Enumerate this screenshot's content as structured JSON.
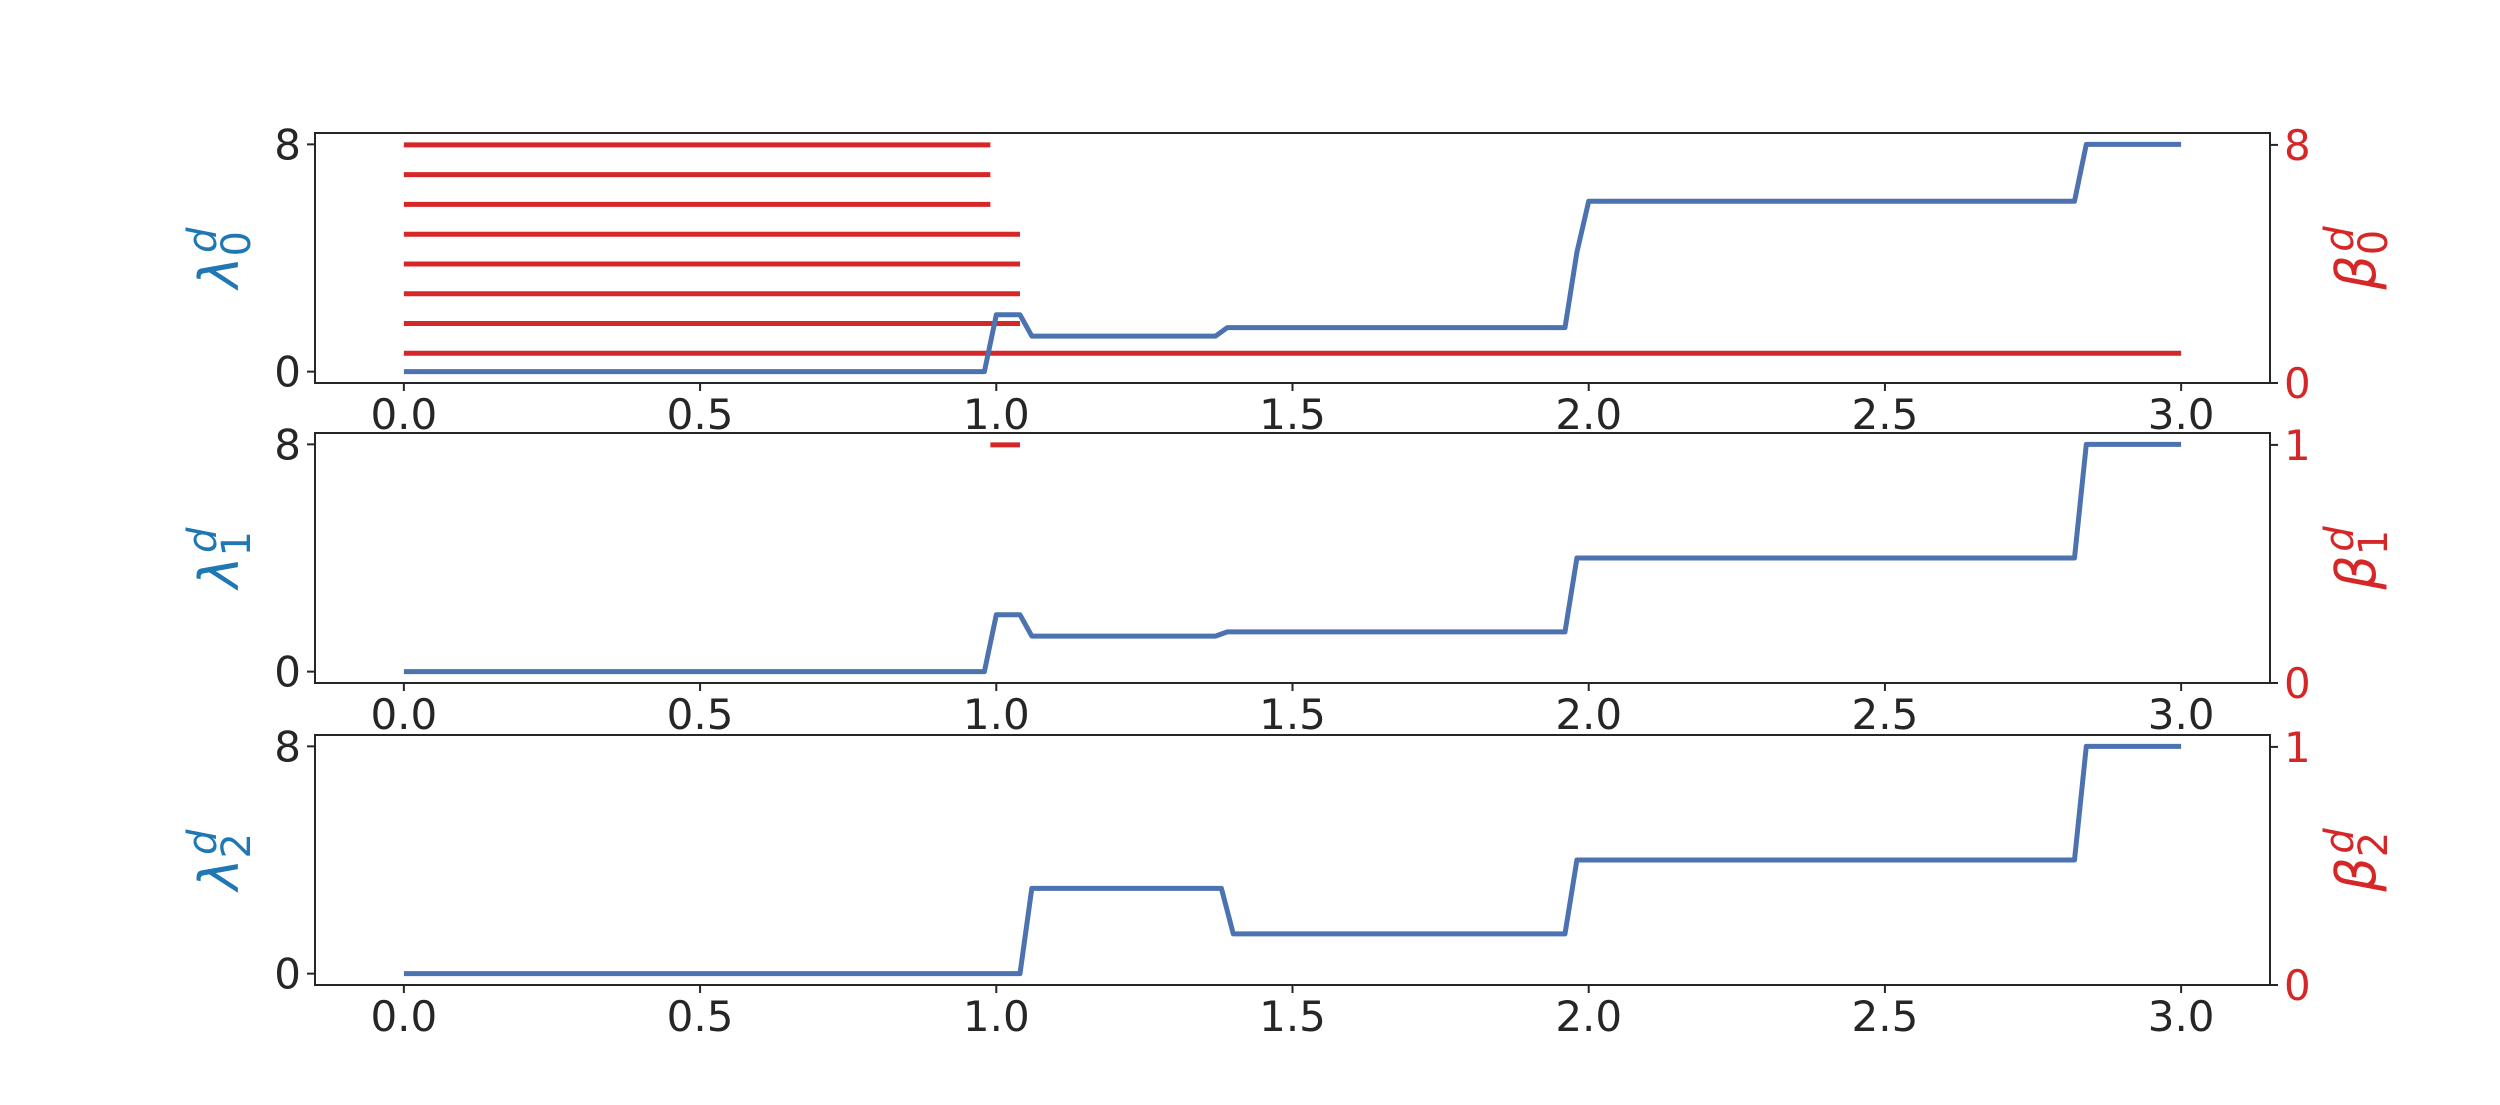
{
  "colors": {
    "left_axis": "#1f77b4",
    "right_axis": "#d62728",
    "line": "#4c72b0",
    "bar": "#d62728",
    "text": "#262626"
  },
  "chart_data": [
    {
      "type": "line",
      "title": "",
      "x_ticks": [
        "0.0",
        "0.5",
        "1.0",
        "1.5",
        "2.0",
        "2.5",
        "3.0"
      ],
      "xlim": [
        -0.15,
        3.15
      ],
      "left_axis": {
        "label_base": "λ",
        "label_sub": "0",
        "label_sup": "d",
        "ticks": [
          "0",
          "8"
        ],
        "ylim": [
          -0.4,
          8.4
        ]
      },
      "right_axis": {
        "label_base": "β",
        "label_sub": "0",
        "label_sup": "d",
        "ticks": [
          "0",
          "8"
        ],
        "ylim": [
          0,
          8.4
        ]
      },
      "series": [
        {
          "x": [
            0.0,
            0.98,
            1.0,
            1.04,
            1.06,
            1.37,
            1.39,
            1.96,
            1.98,
            2.0,
            2.82,
            2.84,
            3.0
          ],
          "y": [
            0.0,
            0.0,
            2.0,
            2.0,
            1.25,
            1.25,
            1.55,
            1.55,
            4.2,
            6.0,
            6.0,
            8.0,
            8.0
          ]
        }
      ],
      "persistence_bars": [
        {
          "birth": 0.0,
          "death": 0.99,
          "level": 8
        },
        {
          "birth": 0.0,
          "death": 0.99,
          "level": 7
        },
        {
          "birth": 0.0,
          "death": 0.99,
          "level": 6
        },
        {
          "birth": 0.0,
          "death": 1.04,
          "level": 5
        },
        {
          "birth": 0.0,
          "death": 1.04,
          "level": 4
        },
        {
          "birth": 0.0,
          "death": 1.04,
          "level": 3
        },
        {
          "birth": 0.0,
          "death": 1.04,
          "level": 2
        },
        {
          "birth": 0.0,
          "death": 3.0,
          "level": 1
        }
      ]
    },
    {
      "type": "line",
      "title": "",
      "x_ticks": [
        "0.0",
        "0.5",
        "1.0",
        "1.5",
        "2.0",
        "2.5",
        "3.0"
      ],
      "xlim": [
        -0.15,
        3.15
      ],
      "left_axis": {
        "label_base": "λ",
        "label_sub": "1",
        "label_sup": "d",
        "ticks": [
          "0",
          "8"
        ],
        "ylim": [
          -0.4,
          8.4
        ]
      },
      "right_axis": {
        "label_base": "β",
        "label_sub": "1",
        "label_sup": "d",
        "ticks": [
          "0",
          "1"
        ],
        "ylim": [
          0,
          1.05
        ]
      },
      "series": [
        {
          "x": [
            0.0,
            0.98,
            1.0,
            1.04,
            1.06,
            1.37,
            1.39,
            1.96,
            1.98,
            2.82,
            2.84,
            3.0
          ],
          "y": [
            0.0,
            0.0,
            2.0,
            2.0,
            1.25,
            1.25,
            1.4,
            1.4,
            4.0,
            4.0,
            8.0,
            8.0
          ]
        }
      ],
      "persistence_bars": [
        {
          "birth": 0.99,
          "death": 1.04,
          "level": 1
        }
      ]
    },
    {
      "type": "line",
      "title": "",
      "x_ticks": [
        "0.0",
        "0.5",
        "1.0",
        "1.5",
        "2.0",
        "2.5",
        "3.0"
      ],
      "xlim": [
        -0.15,
        3.15
      ],
      "left_axis": {
        "label_base": "λ",
        "label_sub": "2",
        "label_sup": "d",
        "ticks": [
          "0",
          "8"
        ],
        "ylim": [
          -0.4,
          8.4
        ]
      },
      "right_axis": {
        "label_base": "β",
        "label_sub": "2",
        "label_sup": "d",
        "ticks": [
          "0",
          "1"
        ],
        "ylim": [
          0,
          1.05
        ]
      },
      "series": [
        {
          "x": [
            0.0,
            1.04,
            1.06,
            1.38,
            1.4,
            1.96,
            1.98,
            2.82,
            2.84,
            3.0
          ],
          "y": [
            0.0,
            0.0,
            3.0,
            3.0,
            1.4,
            1.4,
            4.0,
            4.0,
            8.0,
            8.0
          ]
        }
      ],
      "persistence_bars": []
    }
  ]
}
